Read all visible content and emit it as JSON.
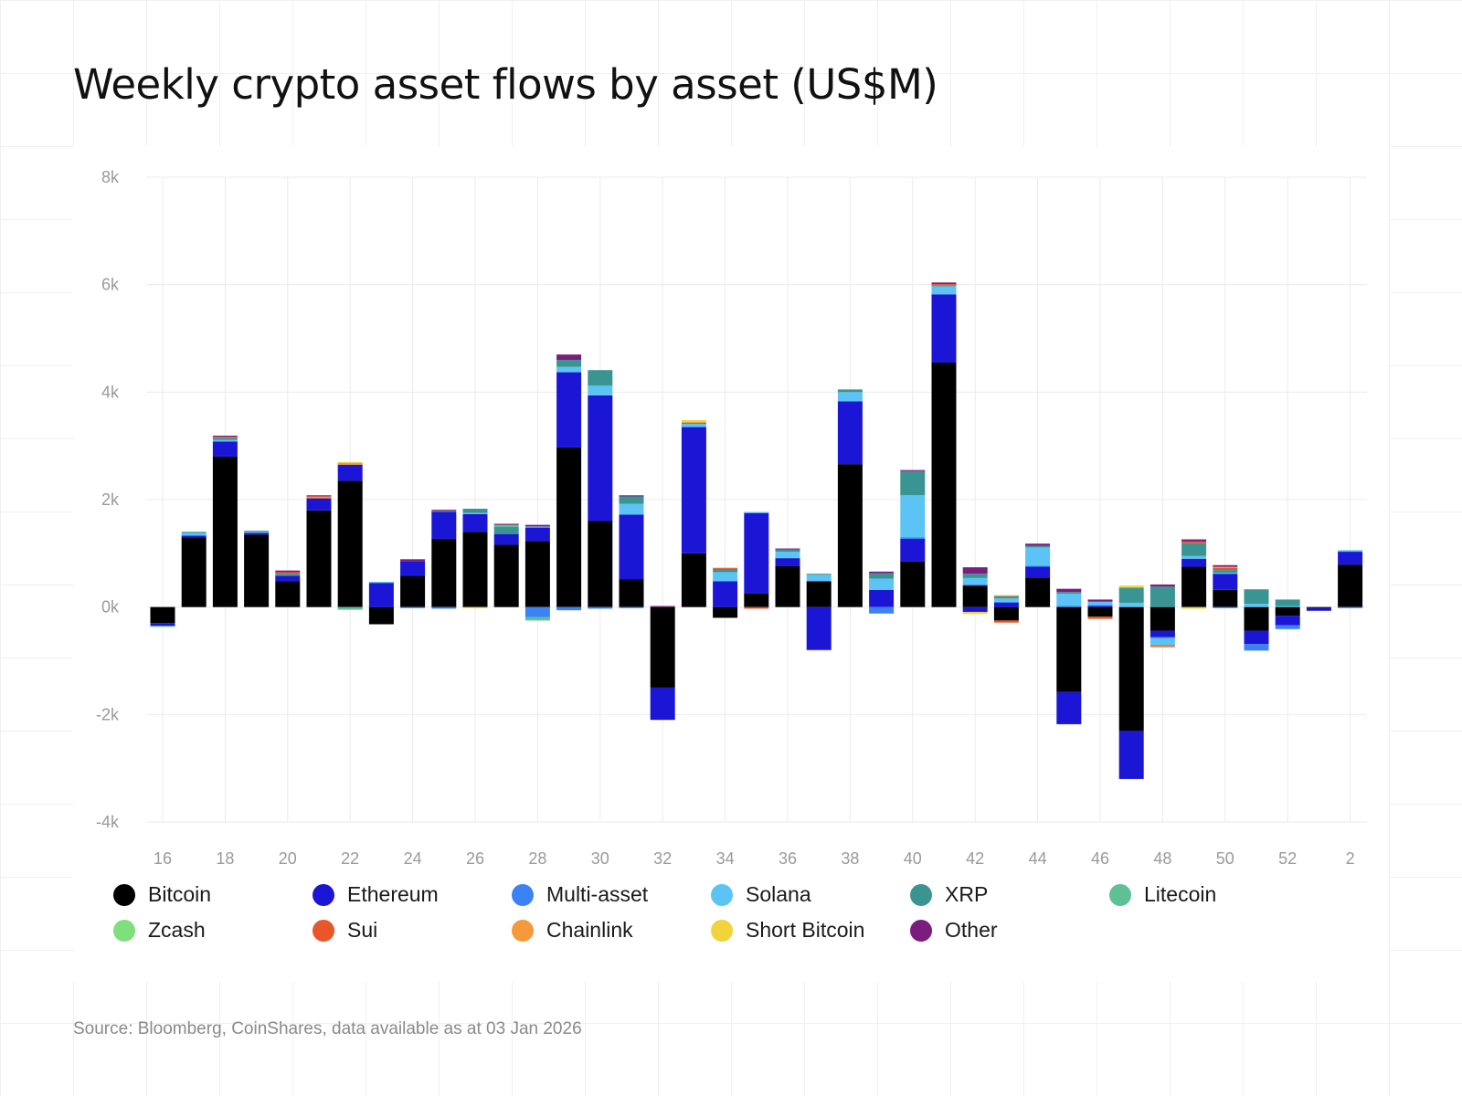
{
  "title": "Weekly crypto asset flows by asset (US$M)",
  "source": "Source: Bloomberg, CoinShares, data available as at 03 Jan 2026",
  "chart_data": {
    "type": "bar",
    "stacked": true,
    "title": "Weekly crypto asset flows by asset (US$M)",
    "xlabel": "",
    "ylabel": "",
    "ylim": [
      -4000,
      8000
    ],
    "y_ticks": [
      8000,
      6000,
      4000,
      2000,
      0,
      -2000,
      -4000
    ],
    "y_tick_labels": [
      "8k",
      "6k",
      "4k",
      "2k",
      "0k",
      "-2k",
      "-4k"
    ],
    "x_tick_labels": [
      "16",
      "18",
      "20",
      "22",
      "24",
      "26",
      "28",
      "30",
      "32",
      "34",
      "36",
      "38",
      "40",
      "42",
      "44",
      "46",
      "48",
      "50",
      "52",
      "2"
    ],
    "grid": true,
    "legend_position": "bottom",
    "categories": [
      "16",
      "17",
      "18",
      "19",
      "20",
      "21",
      "22",
      "23",
      "24",
      "25",
      "26",
      "27",
      "28",
      "29",
      "30",
      "31",
      "32",
      "33",
      "34",
      "35",
      "36",
      "37",
      "38",
      "39",
      "40",
      "41",
      "42",
      "43",
      "44",
      "45",
      "46",
      "47",
      "48",
      "49",
      "50",
      "51",
      "52",
      "1",
      "2"
    ],
    "series": [
      {
        "name": "Bitcoin",
        "color": "#000000",
        "values": [
          -300,
          1300,
          2800,
          1350,
          480,
          1800,
          2350,
          -320,
          580,
          1270,
          1400,
          1160,
          1230,
          2970,
          1600,
          520,
          -1500,
          1000,
          -200,
          250,
          760,
          480,
          2660,
          0,
          850,
          4550,
          400,
          -250,
          550,
          -1580,
          -180,
          -2300,
          -440,
          750,
          320,
          -440,
          -160,
          -20,
          790
        ]
      },
      {
        "name": "Ethereum",
        "color": "#1b16d6",
        "values": [
          -50,
          30,
          280,
          30,
          100,
          220,
          300,
          450,
          270,
          500,
          330,
          200,
          250,
          1400,
          2340,
          1200,
          -600,
          2350,
          480,
          1500,
          150,
          -800,
          1170,
          320,
          420,
          1270,
          -90,
          80,
          200,
          -600,
          20,
          -900,
          -120,
          150,
          300,
          -250,
          -180,
          -50,
          240
        ]
      },
      {
        "name": "Multi-asset",
        "color": "#3b82f6",
        "values": [
          0,
          0,
          0,
          0,
          0,
          0,
          0,
          0,
          -20,
          -30,
          0,
          0,
          -190,
          -60,
          -30,
          -20,
          0,
          0,
          0,
          0,
          0,
          0,
          0,
          -120,
          30,
          0,
          20,
          20,
          20,
          20,
          20,
          0,
          -20,
          0,
          -20,
          -120,
          -70,
          0,
          -20
        ]
      },
      {
        "name": "Solana",
        "color": "#5cc3f5",
        "values": [
          0,
          50,
          30,
          20,
          0,
          0,
          0,
          20,
          0,
          0,
          20,
          0,
          20,
          100,
          180,
          200,
          0,
          60,
          170,
          20,
          120,
          120,
          170,
          210,
          780,
          150,
          120,
          60,
          340,
          230,
          60,
          80,
          -130,
          50,
          20,
          60,
          20,
          0,
          30
        ]
      },
      {
        "name": "XRP",
        "color": "#3a9592",
        "values": [
          0,
          20,
          40,
          20,
          40,
          0,
          0,
          0,
          0,
          20,
          80,
          130,
          0,
          130,
          290,
          140,
          0,
          20,
          60,
          0,
          40,
          20,
          50,
          100,
          450,
          20,
          80,
          40,
          30,
          30,
          0,
          280,
          380,
          240,
          50,
          270,
          120,
          0,
          0
        ]
      },
      {
        "name": "Litecoin",
        "color": "#5ec193",
        "values": [
          -20,
          0,
          0,
          0,
          0,
          0,
          -50,
          0,
          0,
          0,
          0,
          40,
          -60,
          0,
          0,
          0,
          0,
          0,
          0,
          0,
          0,
          0,
          0,
          0,
          0,
          0,
          0,
          0,
          0,
          0,
          0,
          0,
          0,
          0,
          0,
          0,
          0,
          0,
          0
        ]
      },
      {
        "name": "Zcash",
        "color": "#7ee07a",
        "values": [
          0,
          0,
          0,
          0,
          0,
          0,
          0,
          0,
          0,
          0,
          0,
          0,
          0,
          0,
          0,
          0,
          0,
          0,
          0,
          0,
          0,
          0,
          0,
          0,
          0,
          0,
          0,
          0,
          0,
          0,
          0,
          0,
          0,
          0,
          0,
          0,
          0,
          0,
          0
        ]
      },
      {
        "name": "Sui",
        "color": "#e8562a",
        "values": [
          0,
          0,
          20,
          0,
          30,
          20,
          0,
          0,
          0,
          0,
          0,
          0,
          0,
          0,
          0,
          0,
          0,
          0,
          20,
          -30,
          0,
          0,
          0,
          0,
          0,
          20,
          0,
          -40,
          0,
          0,
          -40,
          0,
          -20,
          30,
          40,
          0,
          0,
          0,
          0
        ]
      },
      {
        "name": "Chainlink",
        "color": "#f5993a",
        "values": [
          0,
          0,
          0,
          0,
          0,
          20,
          30,
          0,
          0,
          0,
          0,
          0,
          0,
          0,
          0,
          0,
          0,
          20,
          0,
          0,
          0,
          0,
          0,
          0,
          0,
          0,
          0,
          20,
          0,
          0,
          0,
          0,
          -20,
          0,
          20,
          0,
          0,
          0,
          0
        ]
      },
      {
        "name": "Short Bitcoin",
        "color": "#f1d33c",
        "values": [
          0,
          0,
          0,
          0,
          0,
          0,
          20,
          0,
          0,
          0,
          -20,
          0,
          0,
          0,
          0,
          0,
          0,
          30,
          0,
          0,
          0,
          0,
          0,
          0,
          0,
          0,
          -40,
          0,
          0,
          0,
          0,
          40,
          0,
          -30,
          0,
          0,
          0,
          0,
          0
        ]
      },
      {
        "name": "Other",
        "color": "#7b1d7e",
        "values": [
          0,
          0,
          20,
          0,
          30,
          20,
          0,
          0,
          40,
          20,
          0,
          20,
          30,
          100,
          0,
          20,
          20,
          0,
          0,
          0,
          20,
          0,
          0,
          30,
          20,
          30,
          120,
          0,
          40,
          60,
          40,
          0,
          40,
          40,
          30,
          0,
          0,
          0,
          0
        ]
      }
    ]
  }
}
